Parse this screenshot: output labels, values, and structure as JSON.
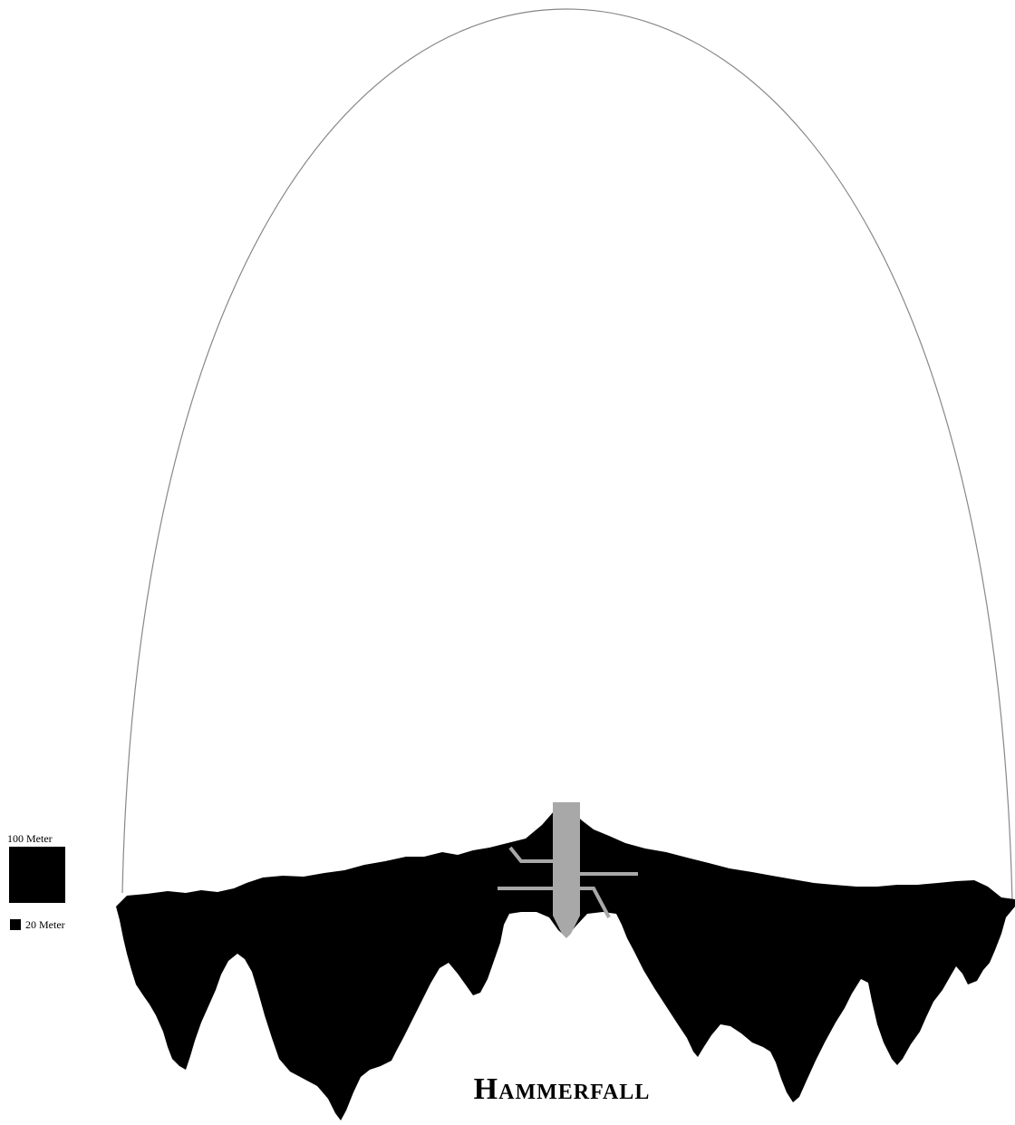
{
  "title": "Hammerfall",
  "scale_legend": {
    "large_label": "100 Meter",
    "small_label": "20 Meter"
  },
  "colors": {
    "rock": "#000000",
    "dome_outline": "#888888",
    "spire": "#a8a8a8",
    "conduits": "#a8a8a8",
    "background": "#ffffff"
  }
}
